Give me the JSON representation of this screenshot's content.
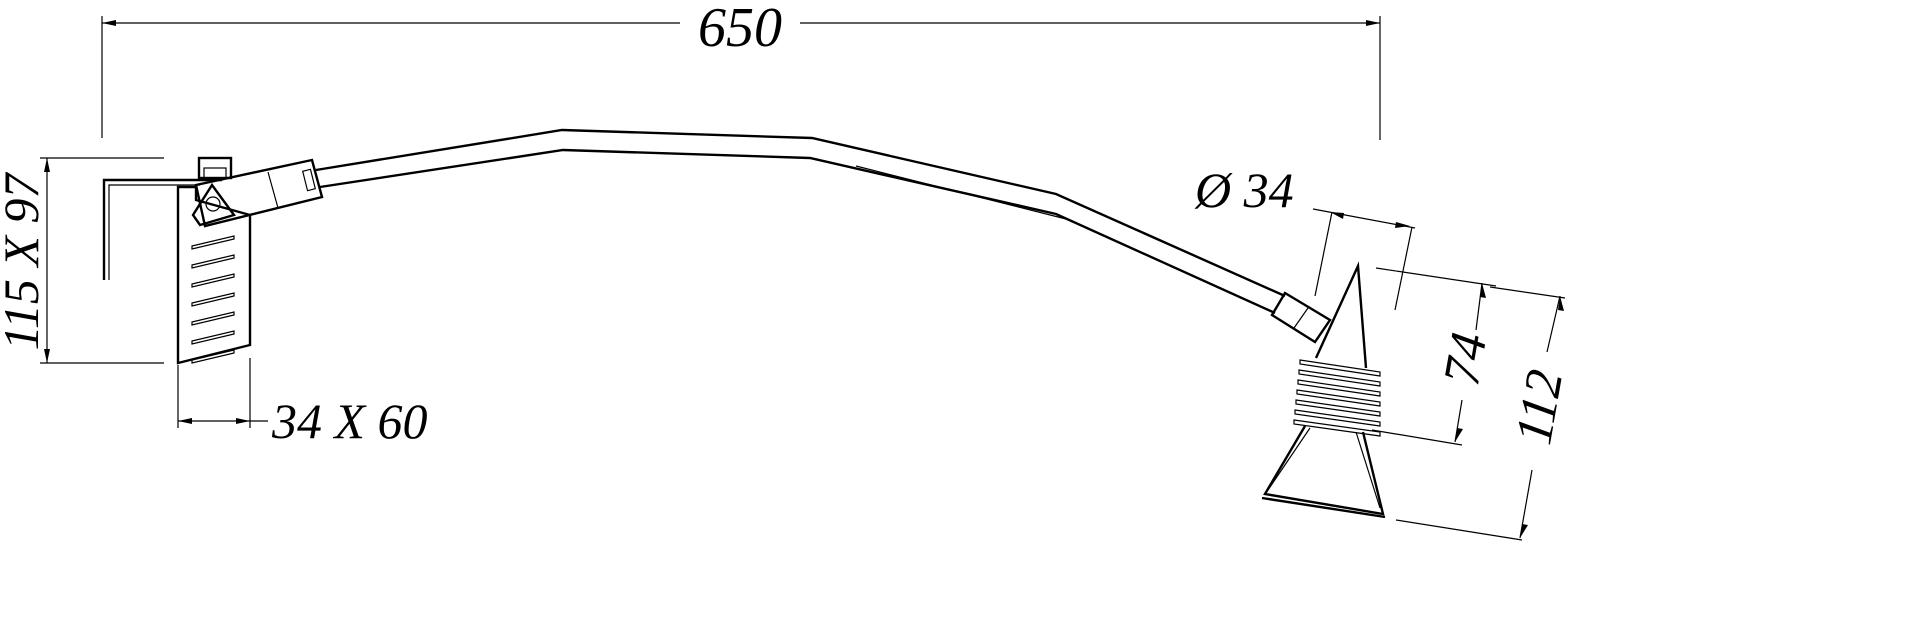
{
  "dimensions": {
    "overall_length": "650",
    "base_plate": "115 X 97",
    "box": "34 X 60",
    "arm_diameter": "Ø 34",
    "head_depth": "74",
    "head_height": "112"
  }
}
